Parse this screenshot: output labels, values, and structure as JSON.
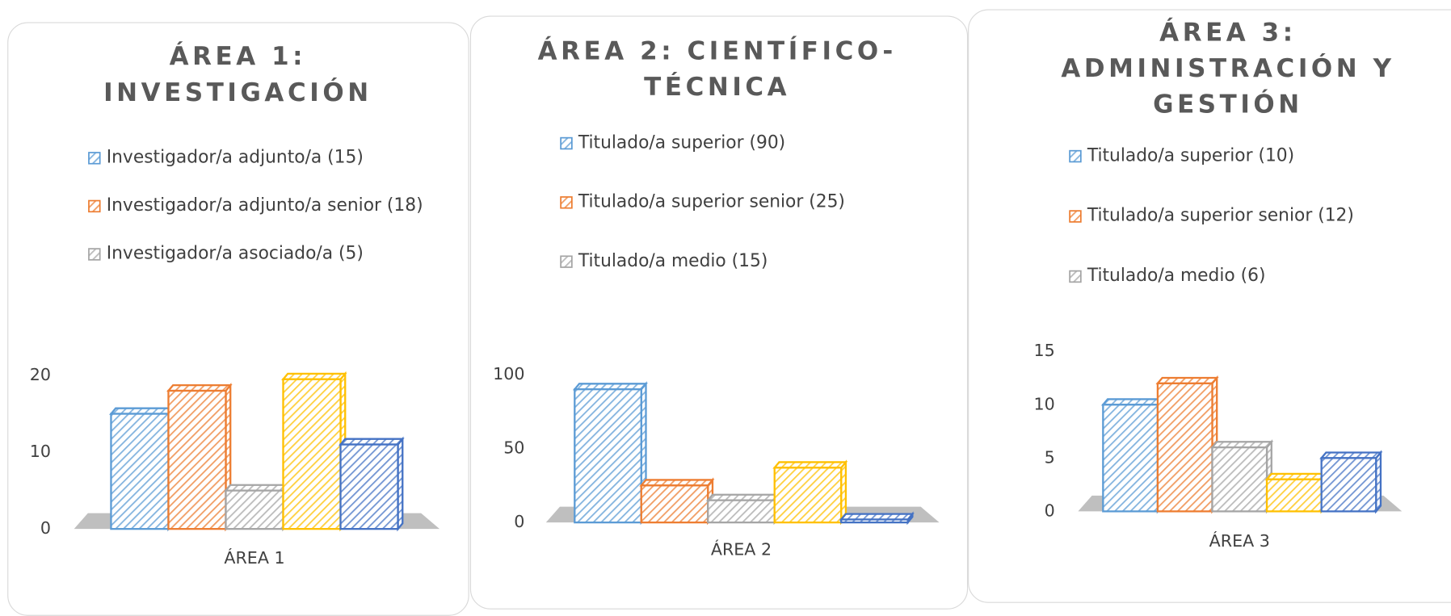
{
  "chart_data": [
    {
      "type": "bar",
      "title": "ÁREA 1: INVESTIGACIÓN",
      "categories": [
        "ÁREA 1"
      ],
      "series": [
        {
          "name": "Investigador/a adjunto/a (15)",
          "color": "#5b9bd5",
          "values": [
            15
          ]
        },
        {
          "name": "Investigador/a adjunto/a senior (18)",
          "color": "#ed7d31",
          "values": [
            18
          ]
        },
        {
          "name": "Investigador/a asociado/a (5)",
          "color": "#a5a5a5",
          "values": [
            5
          ]
        },
        {
          "color": "#ffc000",
          "values": [
            19.5
          ]
        },
        {
          "color": "#4472c4",
          "values": [
            11
          ]
        }
      ],
      "ylim": [
        0,
        20
      ],
      "yticks": [
        0,
        10,
        20
      ]
    },
    {
      "type": "bar",
      "title": "ÁREA 2: CIENTÍFICO-TÉCNICA",
      "categories": [
        "ÁREA 2"
      ],
      "series": [
        {
          "name": "Titulado/a superior (90)",
          "color": "#5b9bd5",
          "values": [
            90
          ]
        },
        {
          "name": "Titulado/a superior senior (25)",
          "color": "#ed7d31",
          "values": [
            25
          ]
        },
        {
          "name": "Titulado/a medio (15)",
          "color": "#a5a5a5",
          "values": [
            15
          ]
        },
        {
          "color": "#ffc000",
          "values": [
            37
          ]
        },
        {
          "color": "#4472c4",
          "values": [
            2
          ]
        }
      ],
      "ylim": [
        0,
        100
      ],
      "yticks": [
        0,
        50,
        100
      ]
    },
    {
      "type": "bar",
      "title": "ÁREA 3: ADMINISTRACIÓN Y GESTIÓN",
      "categories": [
        "ÁREA 3"
      ],
      "series": [
        {
          "name": "Titulado/a superior (10)",
          "color": "#5b9bd5",
          "values": [
            10
          ]
        },
        {
          "name": "Titulado/a superior senior (12)",
          "color": "#ed7d31",
          "values": [
            12
          ]
        },
        {
          "name": "Titulado/a medio (6)",
          "color": "#a5a5a5",
          "values": [
            6
          ]
        },
        {
          "color": "#ffc000",
          "values": [
            3
          ]
        },
        {
          "color": "#4472c4",
          "values": [
            5
          ]
        }
      ],
      "ylim": [
        0,
        15
      ],
      "yticks": [
        0,
        5,
        10,
        15
      ]
    }
  ]
}
